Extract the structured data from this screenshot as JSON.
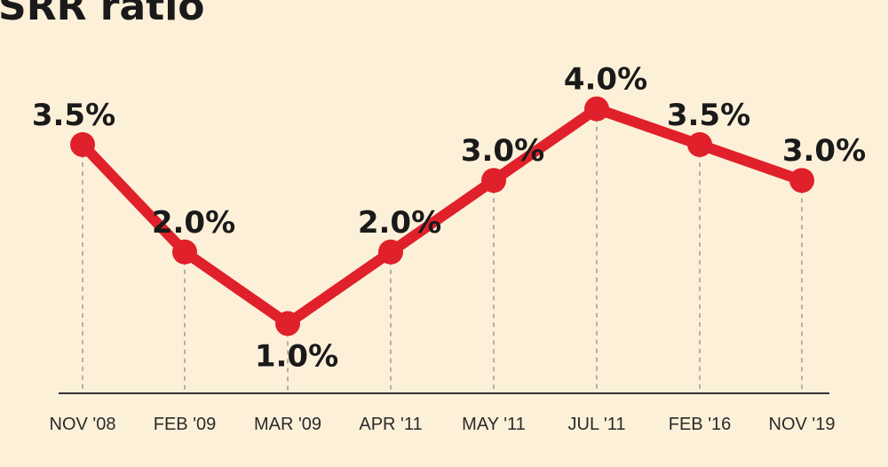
{
  "chart_data": {
    "type": "line",
    "title": "SRR ratio",
    "categories": [
      "NOV '08",
      "FEB '09",
      "MAR '09",
      "APR '11",
      "MAY '11",
      "JUL '11",
      "FEB '16",
      "NOV '19"
    ],
    "values": [
      3.5,
      2.0,
      1.0,
      2.0,
      3.0,
      4.0,
      3.5,
      3.0
    ],
    "data_labels": [
      "3.5%",
      "2.0%",
      "1.0%",
      "2.0%",
      "3.0%",
      "4.0%",
      "3.5%",
      "3.0%"
    ],
    "xlabel": "",
    "ylabel": "",
    "grid": false,
    "colors": {
      "line": "#e0202a",
      "background": "#fdf0d9",
      "axis": "#333333",
      "guide": "#9a9a9a"
    }
  }
}
